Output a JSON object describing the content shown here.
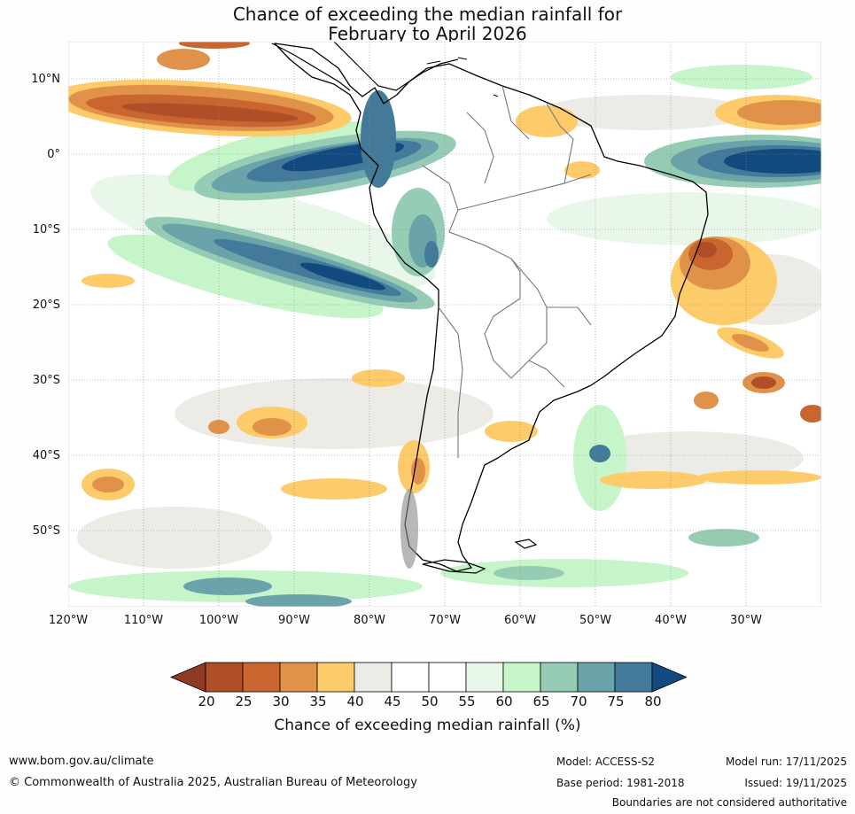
{
  "title": {
    "line1": "Chance of exceeding the median rainfall for",
    "line2": "February to April 2026"
  },
  "chart_data": {
    "type": "heatmap",
    "variable": "Chance of exceeding median rainfall",
    "units": "%",
    "lat_labels": [
      "10°N",
      "0°",
      "10°S",
      "20°S",
      "30°S",
      "40°S",
      "50°S"
    ],
    "lon_labels": [
      "120°W",
      "110°W",
      "100°W",
      "90°W",
      "80°W",
      "70°W",
      "60°W",
      "50°W",
      "40°W",
      "30°W"
    ],
    "lon_range": [
      -120,
      -20
    ],
    "lat_range": [
      -60,
      15
    ],
    "colorbar": {
      "ticks": [
        "20",
        "25",
        "30",
        "35",
        "40",
        "45",
        "50",
        "55",
        "60",
        "65",
        "70",
        "75",
        "80"
      ],
      "colors": [
        "#8f3a22",
        "#b04f27",
        "#c9652e",
        "#e0924a",
        "#fdcb6a",
        "#ecebe6",
        "#ffffff",
        "#ffffff",
        "#e9f6ea",
        "#c6f5c9",
        "#97ccb4",
        "#6aa3a9",
        "#437a99",
        "#124a80"
      ],
      "label": "Chance of exceeding median rainfall (%)"
    }
  },
  "footer": {
    "website": "www.bom.gov.au/climate",
    "copyright": "© Commonwealth of Australia 2025, Australian Bureau of Meteorology",
    "model": "Model: ACCESS-S2",
    "base_period": "Base period: 1981-2018",
    "model_run": "Model run: 17/11/2025",
    "issued": "Issued: 19/11/2025",
    "disclaimer": "Boundaries are not considered authoritative"
  }
}
